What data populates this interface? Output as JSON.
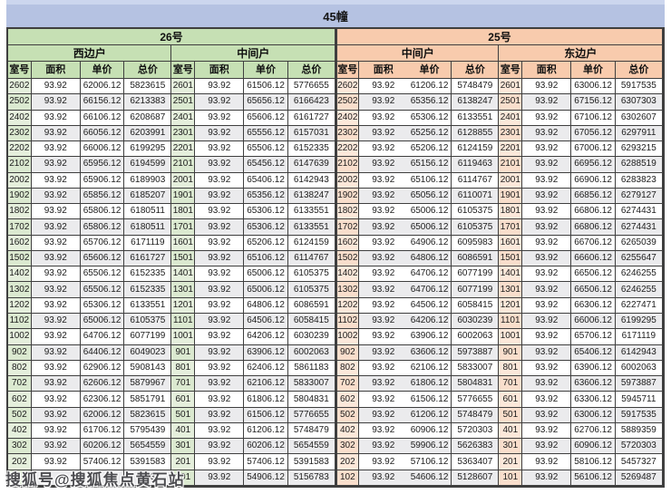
{
  "title": "45幢",
  "watermark": "搜狐号@搜狐焦点黄石站",
  "columns": [
    "室号",
    "面积",
    "单价",
    "总价"
  ],
  "buildings": [
    {
      "label": "26号",
      "theme": "green"
    },
    {
      "label": "25号",
      "theme": "orange"
    }
  ],
  "colors": {
    "title_bg": "#b5c2e2",
    "green_header": "#c6e0b4",
    "orange_header": "#f8cbad",
    "green_room_cell": "#e5efdc",
    "orange_room_cell": "#fce8da",
    "stripe": "#ebebed",
    "border": "#3f3f3f"
  },
  "sections": [
    {
      "building": "26号",
      "unit": "西边户",
      "theme": "green",
      "rows": [
        [
          "2602",
          "93.92",
          "62006.12",
          "5823615"
        ],
        [
          "2502",
          "93.92",
          "66156.12",
          "6213383"
        ],
        [
          "2402",
          "93.92",
          "66106.12",
          "6208687"
        ],
        [
          "2302",
          "93.92",
          "66056.12",
          "6203991"
        ],
        [
          "2202",
          "93.92",
          "66006.12",
          "6199295"
        ],
        [
          "2102",
          "93.92",
          "65956.12",
          "6194599"
        ],
        [
          "2002",
          "93.92",
          "65906.12",
          "6189903"
        ],
        [
          "1902",
          "93.92",
          "65856.12",
          "6185207"
        ],
        [
          "1802",
          "93.92",
          "65806.12",
          "6180511"
        ],
        [
          "1702",
          "93.92",
          "65806.12",
          "6180511"
        ],
        [
          "1602",
          "93.92",
          "65706.12",
          "6171119"
        ],
        [
          "1502",
          "93.92",
          "65606.12",
          "6161727"
        ],
        [
          "1402",
          "93.92",
          "65506.12",
          "6152335"
        ],
        [
          "1302",
          "93.92",
          "65506.12",
          "6152335"
        ],
        [
          "1202",
          "93.92",
          "65306.12",
          "6133551"
        ],
        [
          "1102",
          "93.92",
          "65006.12",
          "6105375"
        ],
        [
          "1002",
          "93.92",
          "64706.12",
          "6077199"
        ],
        [
          "902",
          "93.92",
          "64406.12",
          "6049023"
        ],
        [
          "802",
          "93.92",
          "62906.12",
          "5908143"
        ],
        [
          "702",
          "93.92",
          "62606.12",
          "5879967"
        ],
        [
          "602",
          "93.92",
          "62306.12",
          "5851791"
        ],
        [
          "502",
          "93.92",
          "62006.12",
          "5823615"
        ],
        [
          "402",
          "93.92",
          "61706.12",
          "5795439"
        ],
        [
          "302",
          "93.92",
          "60206.12",
          "5654559"
        ],
        [
          "202",
          "93.92",
          "57406.12",
          "5391583"
        ],
        [
          "",
          "",
          "",
          "743"
        ]
      ]
    },
    {
      "building": "26号",
      "unit": "中间户",
      "theme": "green",
      "rows": [
        [
          "2601",
          "93.92",
          "61506.12",
          "5776655"
        ],
        [
          "2501",
          "93.92",
          "65656.12",
          "6166423"
        ],
        [
          "2401",
          "93.92",
          "65606.12",
          "6161727"
        ],
        [
          "2301",
          "93.92",
          "65556.12",
          "6157031"
        ],
        [
          "2201",
          "93.92",
          "65506.12",
          "6152335"
        ],
        [
          "2101",
          "93.92",
          "65456.12",
          "6147639"
        ],
        [
          "2001",
          "93.92",
          "65406.12",
          "6142943"
        ],
        [
          "1901",
          "93.92",
          "65356.12",
          "6138247"
        ],
        [
          "1801",
          "93.92",
          "65306.12",
          "6133551"
        ],
        [
          "1701",
          "93.92",
          "65306.12",
          "6133551"
        ],
        [
          "1601",
          "93.92",
          "65206.12",
          "6124159"
        ],
        [
          "1501",
          "93.92",
          "65106.12",
          "6114767"
        ],
        [
          "1401",
          "93.92",
          "65006.12",
          "6105375"
        ],
        [
          "1301",
          "93.92",
          "65006.12",
          "6105375"
        ],
        [
          "1201",
          "93.92",
          "64806.12",
          "6086591"
        ],
        [
          "1101",
          "93.92",
          "64506.12",
          "6058415"
        ],
        [
          "1001",
          "93.92",
          "64206.12",
          "6030239"
        ],
        [
          "901",
          "93.92",
          "63906.12",
          "6002063"
        ],
        [
          "801",
          "93.92",
          "62406.12",
          "5861183"
        ],
        [
          "701",
          "93.92",
          "62106.12",
          "5833007"
        ],
        [
          "601",
          "93.92",
          "61806.12",
          "5804831"
        ],
        [
          "501",
          "93.92",
          "61506.12",
          "5776655"
        ],
        [
          "401",
          "93.92",
          "61206.12",
          "5748479"
        ],
        [
          "301",
          "93.92",
          "60206.12",
          "5654559"
        ],
        [
          "201",
          "93.92",
          "57406.12",
          "5391583"
        ],
        [
          "101",
          "93.92",
          "54906.12",
          "5156783"
        ]
      ]
    },
    {
      "building": "25号",
      "unit": "中间户",
      "theme": "orange",
      "rows": [
        [
          "2602",
          "93.92",
          "61206.12",
          "5748479"
        ],
        [
          "2502",
          "93.92",
          "65356.12",
          "6138247"
        ],
        [
          "2402",
          "93.92",
          "65306.12",
          "6133551"
        ],
        [
          "2302",
          "93.92",
          "65256.12",
          "6128855"
        ],
        [
          "2202",
          "93.92",
          "65206.12",
          "6124159"
        ],
        [
          "2102",
          "93.92",
          "65156.12",
          "6119463"
        ],
        [
          "2002",
          "93.92",
          "65106.12",
          "6114767"
        ],
        [
          "1902",
          "93.92",
          "65056.12",
          "6110071"
        ],
        [
          "1802",
          "93.92",
          "65006.12",
          "6105375"
        ],
        [
          "1702",
          "93.92",
          "65006.12",
          "6105375"
        ],
        [
          "1602",
          "93.92",
          "64906.12",
          "6095983"
        ],
        [
          "1502",
          "93.92",
          "64806.12",
          "6086591"
        ],
        [
          "1402",
          "93.92",
          "64706.12",
          "6077199"
        ],
        [
          "1302",
          "93.92",
          "64706.12",
          "6077199"
        ],
        [
          "1202",
          "93.92",
          "64506.12",
          "6058415"
        ],
        [
          "1102",
          "93.92",
          "64206.12",
          "6030239"
        ],
        [
          "1002",
          "93.92",
          "63906.12",
          "6002063"
        ],
        [
          "902",
          "93.92",
          "63606.12",
          "5973887"
        ],
        [
          "802",
          "93.92",
          "62106.12",
          "5833007"
        ],
        [
          "702",
          "93.92",
          "61806.12",
          "5804831"
        ],
        [
          "602",
          "93.92",
          "61506.12",
          "5776655"
        ],
        [
          "502",
          "93.92",
          "61206.12",
          "5748479"
        ],
        [
          "402",
          "93.92",
          "60906.12",
          "5720303"
        ],
        [
          "302",
          "93.92",
          "59906.12",
          "5626383"
        ],
        [
          "202",
          "93.92",
          "57106.12",
          "5363407"
        ],
        [
          "102",
          "93.92",
          "54606.12",
          "5128607"
        ]
      ]
    },
    {
      "building": "25号",
      "unit": "东边户",
      "theme": "orange",
      "rows": [
        [
          "2601",
          "93.92",
          "63006.12",
          "5917535"
        ],
        [
          "2501",
          "93.92",
          "67156.12",
          "6307303"
        ],
        [
          "2401",
          "93.92",
          "67106.12",
          "6302607"
        ],
        [
          "2301",
          "93.92",
          "67056.12",
          "6297911"
        ],
        [
          "2201",
          "93.92",
          "67006.12",
          "6293215"
        ],
        [
          "2101",
          "93.92",
          "66956.12",
          "6288519"
        ],
        [
          "2001",
          "93.92",
          "66906.12",
          "6283823"
        ],
        [
          "1901",
          "93.92",
          "66856.12",
          "6279127"
        ],
        [
          "1801",
          "93.92",
          "66806.12",
          "6274431"
        ],
        [
          "1701",
          "93.92",
          "66806.12",
          "6274431"
        ],
        [
          "1601",
          "93.92",
          "66706.12",
          "6265039"
        ],
        [
          "1501",
          "93.92",
          "66606.12",
          "6255647"
        ],
        [
          "1401",
          "93.92",
          "66506.12",
          "6246255"
        ],
        [
          "1301",
          "93.92",
          "66506.12",
          "6246255"
        ],
        [
          "1201",
          "93.92",
          "66306.12",
          "6227471"
        ],
        [
          "1101",
          "93.92",
          "66006.12",
          "6199295"
        ],
        [
          "1001",
          "93.92",
          "65706.12",
          "6171119"
        ],
        [
          "901",
          "93.92",
          "65406.12",
          "6142943"
        ],
        [
          "801",
          "93.92",
          "63906.12",
          "6002063"
        ],
        [
          "701",
          "93.92",
          "63606.12",
          "5973887"
        ],
        [
          "601",
          "93.92",
          "63306.12",
          "5945711"
        ],
        [
          "501",
          "93.92",
          "63006.12",
          "5917535"
        ],
        [
          "401",
          "93.92",
          "62706.12",
          "5889359"
        ],
        [
          "301",
          "93.92",
          "60906.12",
          "5720303"
        ],
        [
          "201",
          "93.92",
          "58106.12",
          "5457327"
        ],
        [
          "101",
          "93.92",
          "56106.12",
          "5269487"
        ]
      ]
    }
  ]
}
